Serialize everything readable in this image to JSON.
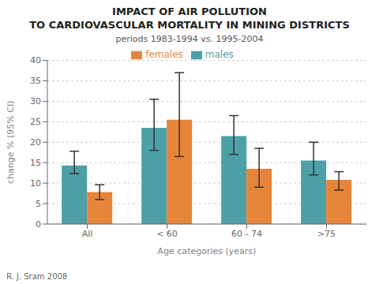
{
  "chart_data": {
    "type": "bar",
    "title": "IMPACT OF AIR POLLUTION\nTO CARDIOVASCULAR MORTALITY IN MINING DISTRICTS",
    "subtitle": "periods 1983-1994  vs.  1995-2004",
    "xlabel": "Age categories (years)",
    "ylabel": "change % (95% CI)",
    "categories": [
      "All",
      "< 60",
      "60 - 74",
      ">75"
    ],
    "series": [
      {
        "name": "males",
        "color": "#4d9fa8",
        "values": [
          14.3,
          23.5,
          21.5,
          15.5
        ],
        "err_low": [
          2.0,
          5.5,
          4.5,
          3.5
        ],
        "err_high": [
          3.5,
          7.0,
          5.0,
          4.5
        ]
      },
      {
        "name": "females",
        "color": "#e8843a",
        "values": [
          7.8,
          25.5,
          13.5,
          10.8
        ],
        "err_low": [
          1.8,
          9.0,
          4.5,
          2.5
        ],
        "err_high": [
          1.8,
          11.5,
          5.0,
          2.0
        ]
      }
    ],
    "ylim": [
      0,
      40
    ],
    "yticks": [
      0,
      5,
      10,
      15,
      20,
      25,
      30,
      35,
      40
    ],
    "grid": true,
    "legend": "top",
    "annotations": [
      "R. J. Sram 2008"
    ]
  }
}
